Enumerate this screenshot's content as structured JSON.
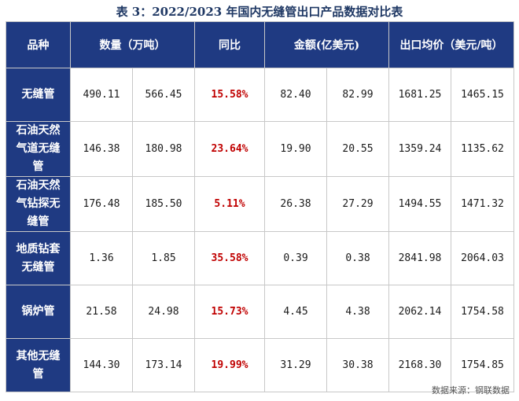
{
  "caption": "表 3：2022/2023 年国内无缝管出口产品数据对比表",
  "headers": [
    "品种",
    "数量（万吨）",
    "同比",
    "金额(亿美元)",
    "出口均价（美元/吨）"
  ],
  "rows": [
    {
      "name": "无缝管",
      "q1": "490.11",
      "q2": "566.45",
      "yoy": "15.58%",
      "a1": "82.40",
      "a2": "82.99",
      "p1": "1681.25",
      "p2": "1465.15"
    },
    {
      "name": "石油天然气道无缝管",
      "q1": "146.38",
      "q2": "180.98",
      "yoy": "23.64%",
      "a1": "19.90",
      "a2": "20.55",
      "p1": "1359.24",
      "p2": "1135.62"
    },
    {
      "name": "石油天然气钻探无缝管",
      "q1": "176.48",
      "q2": "185.50",
      "yoy": "5.11%",
      "a1": "26.38",
      "a2": "27.29",
      "p1": "1494.55",
      "p2": "1471.32"
    },
    {
      "name": "地质钻套无缝管",
      "q1": "1.36",
      "q2": "1.85",
      "yoy": "35.58%",
      "a1": "0.39",
      "a2": "0.38",
      "p1": "2841.98",
      "p2": "2064.03"
    },
    {
      "name": "锅炉管",
      "q1": "21.58",
      "q2": "24.98",
      "yoy": "15.73%",
      "a1": "4.45",
      "a2": "4.38",
      "p1": "2062.14",
      "p2": "1754.58"
    },
    {
      "name": "其他无缝管",
      "q1": "144.30",
      "q2": "173.14",
      "yoy": "19.99%",
      "a1": "31.29",
      "a2": "30.38",
      "p1": "2168.30",
      "p2": "1754.85"
    }
  ],
  "source": "数据来源：钢联数据",
  "colors": {
    "header_bg": "#1f3a82",
    "caption": "#1f3864",
    "highlight": "#c00000"
  }
}
